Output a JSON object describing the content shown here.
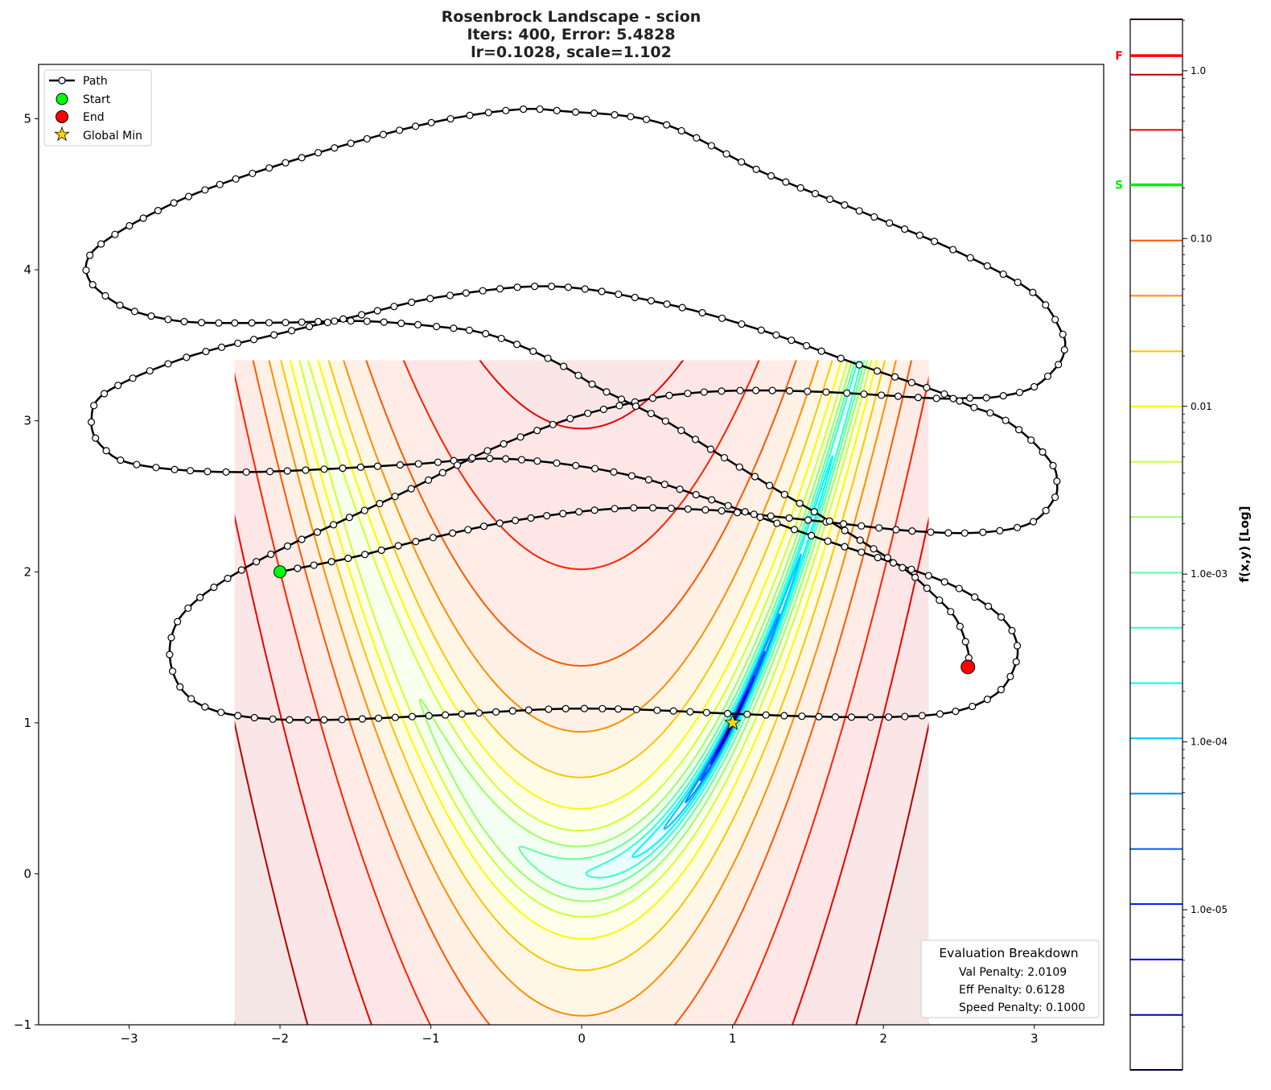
{
  "chart_data": {
    "type": "contour",
    "title_lines": [
      "Rosenbrock Landscape - scion",
      "Iters: 400, Error: 5.4828",
      "lr=0.1028, scale=1.102"
    ],
    "xlim": [
      -3.6,
      3.46
    ],
    "ylim": [
      -1,
      5.36
    ],
    "x_ticks": [
      -3,
      -2,
      -1,
      0,
      1,
      2,
      3
    ],
    "y_ticks": [
      -1,
      0,
      1,
      2,
      3,
      4,
      5
    ],
    "grid": false,
    "aspect": "equal",
    "function": "Rosenbrock f(x,y) = (1-x)^2 + 100(y-x^2)^2 (normalized)",
    "contour_domain": {
      "x": [
        -2.3,
        2.3
      ],
      "y": [
        -1,
        3.4
      ]
    },
    "colormap": "jet",
    "contour_levels": [
      2.026,
      0.948,
      0.444,
      0.208,
      0.0973,
      0.0456,
      0.0213,
      0.00998,
      0.00467,
      0.00219,
      0.00102,
      0.000479,
      0.000224,
      0.000105,
      4.92e-05,
      2.3e-05,
      1.08e-05,
      5.05e-06,
      2.36e-06,
      1.11e-06
    ],
    "colorbar": {
      "label": "f(x,y) [Log]",
      "scale": "log",
      "range": [
        1.11e-06,
        2.026
      ],
      "ticks": [
        {
          "value": 1.0,
          "label": "1.0"
        },
        {
          "value": 0.1,
          "label": "0.10"
        },
        {
          "value": 0.01,
          "label": "0.01"
        },
        {
          "value": 0.001,
          "label": "1.0e-03"
        },
        {
          "value": 0.0001,
          "label": "1.0e-04"
        },
        {
          "value": 1e-05,
          "label": "1.0e-05"
        }
      ],
      "markers": [
        {
          "label": "F",
          "value": 1.23,
          "color": "#ff0000"
        },
        {
          "label": "S",
          "value": 0.209,
          "color": "#00ee00"
        }
      ]
    },
    "legend": {
      "placement": "upper-left",
      "entries": [
        {
          "label": "Path",
          "marker": "line-circle",
          "color": "#000000"
        },
        {
          "label": "Start",
          "marker": "circle",
          "color": "#00ff00"
        },
        {
          "label": "End",
          "marker": "circle",
          "color": "#ff0000"
        },
        {
          "label": "Global Min",
          "marker": "star",
          "color": "#ffd700"
        }
      ]
    },
    "start": [
      -2,
      2
    ],
    "end": [
      2.56,
      1.37
    ],
    "global_min": [
      1,
      1
    ],
    "path": [
      [
        -2,
        2
      ],
      [
        -1.5,
        2.1
      ],
      [
        -1.1,
        2.2
      ],
      [
        -0.44,
        2.34
      ],
      [
        0.25,
        2.42
      ],
      [
        0.82,
        2.41
      ],
      [
        1.05,
        2.39
      ],
      [
        1.62,
        2.33
      ],
      [
        2.19,
        2.27
      ],
      [
        2.64,
        2.26
      ],
      [
        2.97,
        2.32
      ],
      [
        3.13,
        2.48
      ],
      [
        3.15,
        2.6
      ],
      [
        3.12,
        2.71
      ],
      [
        2.97,
        2.88
      ],
      [
        2.78,
        3.02
      ],
      [
        2.57,
        3.1
      ],
      [
        2.37,
        3.19
      ],
      [
        1.84,
        3.37
      ],
      [
        1.19,
        3.6
      ],
      [
        0.53,
        3.78
      ],
      [
        -0.2,
        3.89
      ],
      [
        -0.94,
        3.82
      ],
      [
        -1.51,
        3.69
      ],
      [
        -1.95,
        3.59
      ],
      [
        -2.62,
        3.42
      ],
      [
        -3.15,
        3.19
      ],
      [
        -3.25,
        3.0
      ],
      [
        -3.18,
        2.83
      ],
      [
        -2.95,
        2.71
      ],
      [
        -2.27,
        2.66
      ],
      [
        -1.16,
        2.71
      ],
      [
        -0.61,
        2.75
      ],
      [
        -0.09,
        2.71
      ],
      [
        0.4,
        2.62
      ],
      [
        0.79,
        2.5
      ],
      [
        1.02,
        2.42
      ],
      [
        1.55,
        2.23
      ],
      [
        2.09,
        2.05
      ],
      [
        2.52,
        1.88
      ],
      [
        2.8,
        1.68
      ],
      [
        2.89,
        1.48
      ],
      [
        2.82,
        1.27
      ],
      [
        2.68,
        1.15
      ],
      [
        2.45,
        1.07
      ],
      [
        2.1,
        1.04
      ],
      [
        1.6,
        1.04
      ],
      [
        1.0,
        1.06
      ],
      [
        0.3,
        1.09
      ],
      [
        -0.22,
        1.09
      ],
      [
        -0.94,
        1.05
      ],
      [
        -1.65,
        1.02
      ],
      [
        -2.13,
        1.03
      ],
      [
        -2.46,
        1.09
      ],
      [
        -2.65,
        1.22
      ],
      [
        -2.73,
        1.43
      ],
      [
        -2.69,
        1.65
      ],
      [
        -2.53,
        1.83
      ],
      [
        -2.24,
        2.02
      ],
      [
        -1.95,
        2.17
      ],
      [
        -1.54,
        2.36
      ],
      [
        -1.13,
        2.55
      ],
      [
        -0.65,
        2.79
      ],
      [
        -0.12,
        3.0
      ],
      [
        0.25,
        3.1
      ],
      [
        0.6,
        3.17
      ],
      [
        1.05,
        3.2
      ],
      [
        1.62,
        3.19
      ],
      [
        2.31,
        3.15
      ],
      [
        2.54,
        3.15
      ],
      [
        2.76,
        3.16
      ],
      [
        2.99,
        3.22
      ],
      [
        3.15,
        3.36
      ],
      [
        3.2,
        3.47
      ],
      [
        3.18,
        3.59
      ],
      [
        2.99,
        3.85
      ],
      [
        2.49,
        4.12
      ],
      [
        1.84,
        4.39
      ],
      [
        1.19,
        4.65
      ],
      [
        0.53,
        4.97
      ],
      [
        -0.12,
        5.05
      ],
      [
        -0.44,
        5.06
      ],
      [
        -0.92,
        4.99
      ],
      [
        -1.45,
        4.86
      ],
      [
        -1.99,
        4.7
      ],
      [
        -2.52,
        4.52
      ],
      [
        -2.89,
        4.35
      ],
      [
        -3.16,
        4.19
      ],
      [
        -3.27,
        4.08
      ],
      [
        -3.28,
        3.97
      ],
      [
        -3.21,
        3.87
      ],
      [
        -3.03,
        3.75
      ],
      [
        -2.79,
        3.68
      ],
      [
        -2.52,
        3.65
      ],
      [
        -1.99,
        3.65
      ],
      [
        -1.45,
        3.66
      ],
      [
        -0.92,
        3.62
      ],
      [
        -0.65,
        3.58
      ],
      [
        -0.39,
        3.49
      ],
      [
        -0.12,
        3.36
      ],
      [
        0.09,
        3.23
      ],
      [
        0.31,
        3.12
      ],
      [
        0.57,
        2.99
      ],
      [
        0.89,
        2.79
      ],
      [
        1.28,
        2.55
      ],
      [
        1.57,
        2.38
      ],
      [
        1.86,
        2.2
      ],
      [
        2.15,
        2.01
      ],
      [
        2.32,
        1.86
      ],
      [
        2.48,
        1.69
      ],
      [
        2.56,
        1.48
      ],
      [
        2.56,
        1.37
      ]
    ],
    "annotation_box": {
      "title": "Evaluation Breakdown",
      "lines": [
        "Val Penalty: 2.0109",
        "Eff Penalty: 0.6128",
        "Speed Penalty: 0.1000"
      ],
      "placement": "lower-right"
    }
  }
}
